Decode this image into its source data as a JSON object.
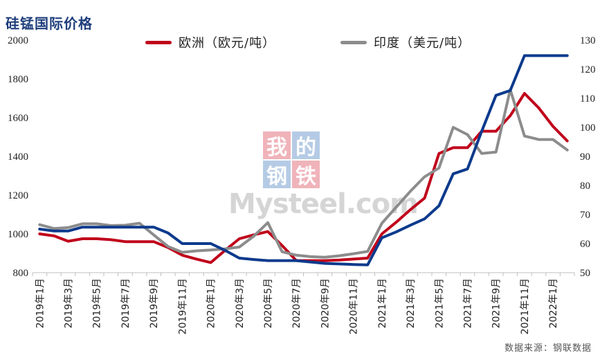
{
  "title": "硅锰国际价格",
  "source": "数据来源：钢联数据",
  "watermark": {
    "chars": [
      "我",
      "的",
      "钢",
      "铁"
    ],
    "brand": "Mysteel.com"
  },
  "chart_data": {
    "type": "line",
    "categories": [
      "2019年1月",
      "2019年2月",
      "2019年3月",
      "2019年4月",
      "2019年5月",
      "2019年6月",
      "2019年7月",
      "2019年8月",
      "2019年9月",
      "2019年10月",
      "2019年11月",
      "2019年12月",
      "2020年1月",
      "2020年2月",
      "2020年3月",
      "2020年4月",
      "2020年5月",
      "2020年6月",
      "2020年7月",
      "2020年8月",
      "2020年9月",
      "2020年10月",
      "2020年11月",
      "2020年12月",
      "2021年1月",
      "2021年2月",
      "2021年3月",
      "2021年4月",
      "2021年5月",
      "2021年6月",
      "2021年7月",
      "2021年8月",
      "2021年9月",
      "2021年10月",
      "2021年11月",
      "2021年12月",
      "2022年1月",
      "2022年2月"
    ],
    "x_tick_labels": [
      "2019年1月",
      "2019年3月",
      "2019年5月",
      "2019年7月",
      "2019年9月",
      "2019年11月",
      "2020年1月",
      "2020年3月",
      "2020年5月",
      "2020年7月",
      "2020年9月",
      "2020年11月",
      "2021年1月",
      "2021年3月",
      "2021年5月",
      "2021年7月",
      "2021年9月",
      "2021年11月",
      "2022年1月"
    ],
    "y_left": {
      "ylim": [
        800,
        2000
      ],
      "ticks": [
        800,
        1000,
        1200,
        1400,
        1600,
        1800,
        2000
      ]
    },
    "y_right": {
      "ylim": [
        50,
        130
      ],
      "ticks": [
        50,
        60,
        70,
        80,
        90,
        100,
        110,
        120,
        130
      ]
    },
    "series": [
      {
        "name": "欧洲（欧元/吨）",
        "axis": "left",
        "color": "#c0001a",
        "values": [
          1000,
          990,
          962,
          975,
          975,
          970,
          960,
          960,
          960,
          930,
          890,
          870,
          852,
          915,
          975,
          995,
          1012,
          940,
          862,
          862,
          862,
          865,
          870,
          875,
          1000,
          1060,
          1125,
          1185,
          1415,
          1445,
          1445,
          1530,
          1530,
          1610,
          1725,
          1650,
          1555,
          1480
        ]
      },
      {
        "name": "印度（美元/吨）",
        "axis": "right",
        "color": "#8c8c8c",
        "values": [
          66.5,
          65.2,
          65.5,
          66.8,
          66.8,
          66.2,
          66.3,
          67,
          63,
          59,
          57,
          57.5,
          57.8,
          58.2,
          58.8,
          62.5,
          67.2,
          57.2,
          56,
          55.5,
          55.3,
          55.8,
          56.5,
          57.3,
          67,
          72.5,
          78,
          83,
          86,
          100,
          97.5,
          91,
          91.5,
          113,
          97,
          95.8,
          95.8,
          92.2
        ]
      },
      {
        "name": "",
        "axis": "left",
        "color": "#0c3a8c",
        "values": [
          1025,
          1015,
          1015,
          1035,
          1035,
          1035,
          1035,
          1035,
          1035,
          1005,
          950,
          950,
          950,
          915,
          875,
          868,
          862,
          862,
          862,
          855,
          848,
          845,
          842,
          840,
          980,
          1010,
          1045,
          1078,
          1145,
          1310,
          1335,
          1530,
          1715,
          1740,
          1920,
          1920,
          1920,
          1920
        ]
      }
    ],
    "legend_placement": "top-center",
    "grid": false
  }
}
